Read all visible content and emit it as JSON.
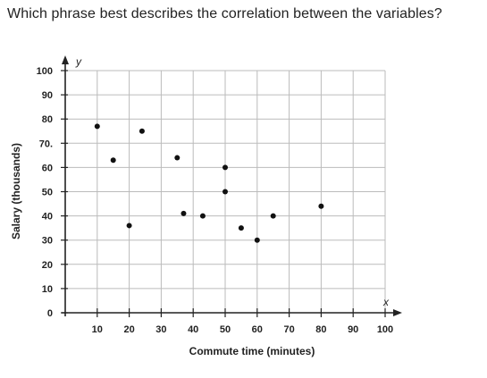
{
  "question": "Which phrase best describes the correlation between the variables?",
  "chart_data": {
    "type": "scatter",
    "title": "",
    "xlabel": "Commute time (minutes)",
    "ylabel": "Salary (thousands)",
    "x_var": "x",
    "y_var": "y",
    "xlim": [
      0,
      100
    ],
    "ylim": [
      0,
      100
    ],
    "x_ticks": [
      10,
      20,
      30,
      40,
      50,
      60,
      70,
      80,
      90,
      100
    ],
    "y_ticks": [
      0,
      10,
      20,
      30,
      40,
      50,
      60,
      70,
      80,
      90,
      100
    ],
    "y_tick_labels": [
      "0",
      "10",
      "20",
      "30",
      "40",
      "50",
      "60",
      "70.",
      "80",
      "90",
      "100"
    ],
    "grid": true,
    "points": [
      {
        "x": 10,
        "y": 77
      },
      {
        "x": 15,
        "y": 63
      },
      {
        "x": 20,
        "y": 36
      },
      {
        "x": 24,
        "y": 75
      },
      {
        "x": 35,
        "y": 64
      },
      {
        "x": 37,
        "y": 41
      },
      {
        "x": 43,
        "y": 40
      },
      {
        "x": 50,
        "y": 60
      },
      {
        "x": 50,
        "y": 50
      },
      {
        "x": 55,
        "y": 35
      },
      {
        "x": 60,
        "y": 30
      },
      {
        "x": 65,
        "y": 40
      },
      {
        "x": 80,
        "y": 44
      }
    ],
    "colors": {
      "point": "#111111",
      "grid": "#bbbbbb",
      "axis": "#222222"
    }
  }
}
